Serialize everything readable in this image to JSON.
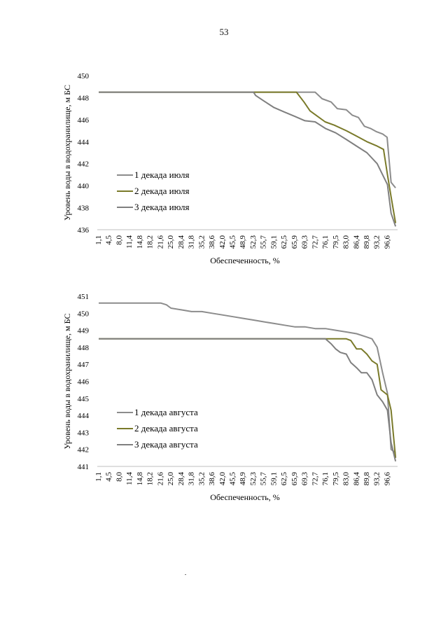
{
  "page": {
    "number": "53"
  },
  "chart_data": [
    {
      "type": "line",
      "title": "",
      "xlabel": "Обеспеченность, %",
      "ylabel": "Уровень воды в водохранилище, м БС",
      "ylim": [
        436,
        450
      ],
      "yticks": [
        436,
        438,
        440,
        442,
        444,
        446,
        448,
        450
      ],
      "categories": [
        "1,1",
        "4,5",
        "8,0",
        "11,4",
        "14,8",
        "18,2",
        "21,6",
        "25,0",
        "28,4",
        "31,8",
        "35,2",
        "38,6",
        "42,0",
        "45,5",
        "48,9",
        "52,3",
        "55,7",
        "59,1",
        "62,5",
        "65,9",
        "69,3",
        "72,7",
        "76,1",
        "79,5",
        "83,0",
        "86,4",
        "89,8",
        "93,2",
        "96,6"
      ],
      "legend_position": "center-left",
      "series": [
        {
          "name": "1 декада июля",
          "color": "#8c8c8c",
          "points": [
            [
              1.1,
              448.5
            ],
            [
              52.3,
              448.5
            ],
            [
              72.7,
              448.5
            ],
            [
              75,
              447.9
            ],
            [
              78,
              447.6
            ],
            [
              80,
              447.0
            ],
            [
              83,
              446.9
            ],
            [
              85,
              446.4
            ],
            [
              87,
              446.2
            ],
            [
              89,
              445.4
            ],
            [
              91,
              445.2
            ],
            [
              93,
              444.9
            ],
            [
              95,
              444.7
            ],
            [
              96.5,
              444.4
            ],
            [
              97.8,
              440.3
            ],
            [
              99.3,
              439.8
            ]
          ]
        },
        {
          "name": "2 декада июля",
          "color": "#7a7a2a",
          "points": [
            [
              1.1,
              448.5
            ],
            [
              52.3,
              448.5
            ],
            [
              66.5,
              448.5
            ],
            [
              69,
              447.6
            ],
            [
              71,
              446.8
            ],
            [
              73,
              446.4
            ],
            [
              76,
              445.8
            ],
            [
              79,
              445.5
            ],
            [
              83,
              445.0
            ],
            [
              86.4,
              444.5
            ],
            [
              89.8,
              444.0
            ],
            [
              93.2,
              443.6
            ],
            [
              95.3,
              443.3
            ],
            [
              96.6,
              441.0
            ],
            [
              97.8,
              439.0
            ],
            [
              99.3,
              436.6
            ]
          ]
        },
        {
          "name": "3 декада июля",
          "color": "#7f7f7f",
          "points": [
            [
              1.1,
              448.5
            ],
            [
              52.3,
              448.5
            ],
            [
              53,
              448.2
            ],
            [
              55.7,
              447.7
            ],
            [
              59.1,
              447.1
            ],
            [
              62.5,
              446.7
            ],
            [
              65.9,
              446.3
            ],
            [
              69.3,
              445.9
            ],
            [
              72.7,
              445.8
            ],
            [
              76.1,
              445.2
            ],
            [
              79.5,
              444.8
            ],
            [
              83.0,
              444.2
            ],
            [
              86.4,
              443.6
            ],
            [
              89.8,
              443.0
            ],
            [
              93.2,
              442.0
            ],
            [
              96.6,
              440.1
            ],
            [
              97.8,
              437.5
            ],
            [
              99.3,
              436.3
            ]
          ]
        }
      ]
    },
    {
      "type": "line",
      "title": "",
      "xlabel": "Обеспеченность, %",
      "ylabel": "Уровень воды в водохранилище, м БС",
      "ylim": [
        441,
        451
      ],
      "yticks": [
        441,
        442,
        443,
        444,
        445,
        446,
        447,
        448,
        449,
        450,
        451
      ],
      "categories": [
        "1,1",
        "4,5",
        "8,0",
        "11,4",
        "14,8",
        "18,2",
        "21,6",
        "25,0",
        "28,4",
        "31,8",
        "35,2",
        "38,6",
        "42,0",
        "45,5",
        "48,9",
        "52,3",
        "55,7",
        "59,1",
        "62,5",
        "65,9",
        "69,3",
        "72,7",
        "76,1",
        "79,5",
        "83,0",
        "86,4",
        "89,8",
        "93,2",
        "96,6"
      ],
      "legend_position": "bottom-left",
      "series": [
        {
          "name": "1 декада августа",
          "color": "#8c8c8c",
          "points": [
            [
              1.1,
              450.6
            ],
            [
              21.6,
              450.6
            ],
            [
              23.5,
              450.5
            ],
            [
              25.0,
              450.3
            ],
            [
              28.4,
              450.2
            ],
            [
              31.8,
              450.1
            ],
            [
              35.2,
              450.1
            ],
            [
              38.6,
              450.0
            ],
            [
              42.0,
              449.9
            ],
            [
              45.5,
              449.8
            ],
            [
              48.9,
              449.7
            ],
            [
              52.3,
              449.6
            ],
            [
              55.7,
              449.5
            ],
            [
              59.1,
              449.4
            ],
            [
              62.5,
              449.3
            ],
            [
              65.9,
              449.2
            ],
            [
              69.3,
              449.2
            ],
            [
              72.7,
              449.1
            ],
            [
              76.1,
              449.1
            ],
            [
              79.5,
              449.0
            ],
            [
              83.0,
              448.9
            ],
            [
              86.4,
              448.8
            ],
            [
              89.8,
              448.6
            ],
            [
              91.5,
              448.5
            ],
            [
              93.2,
              448.0
            ],
            [
              95,
              446.5
            ],
            [
              96.6,
              445.3
            ],
            [
              97.8,
              442.0
            ],
            [
              99.3,
              441.8
            ]
          ]
        },
        {
          "name": "2 декада августа",
          "color": "#7a7a2a",
          "points": [
            [
              1.1,
              448.5
            ],
            [
              83.0,
              448.5
            ],
            [
              84.5,
              448.4
            ],
            [
              86.4,
              447.9
            ],
            [
              88,
              447.9
            ],
            [
              89.8,
              447.6
            ],
            [
              91.5,
              447.2
            ],
            [
              93.2,
              447.0
            ],
            [
              94.5,
              445.5
            ],
            [
              96.6,
              445.2
            ],
            [
              97.8,
              444.3
            ],
            [
              99.3,
              441.5
            ]
          ]
        },
        {
          "name": "3 декада августа",
          "color": "#7f7f7f",
          "points": [
            [
              1.1,
              448.5
            ],
            [
              76.1,
              448.5
            ],
            [
              78,
              448.2
            ],
            [
              79.5,
              447.9
            ],
            [
              81,
              447.7
            ],
            [
              83.0,
              447.6
            ],
            [
              84.5,
              447.1
            ],
            [
              86.4,
              446.8
            ],
            [
              88,
              446.5
            ],
            [
              89.8,
              446.5
            ],
            [
              91.5,
              446.1
            ],
            [
              93.2,
              445.2
            ],
            [
              95,
              444.8
            ],
            [
              96.6,
              444.3
            ],
            [
              97.8,
              442.4
            ],
            [
              99.3,
              441.3
            ]
          ]
        }
      ]
    }
  ]
}
